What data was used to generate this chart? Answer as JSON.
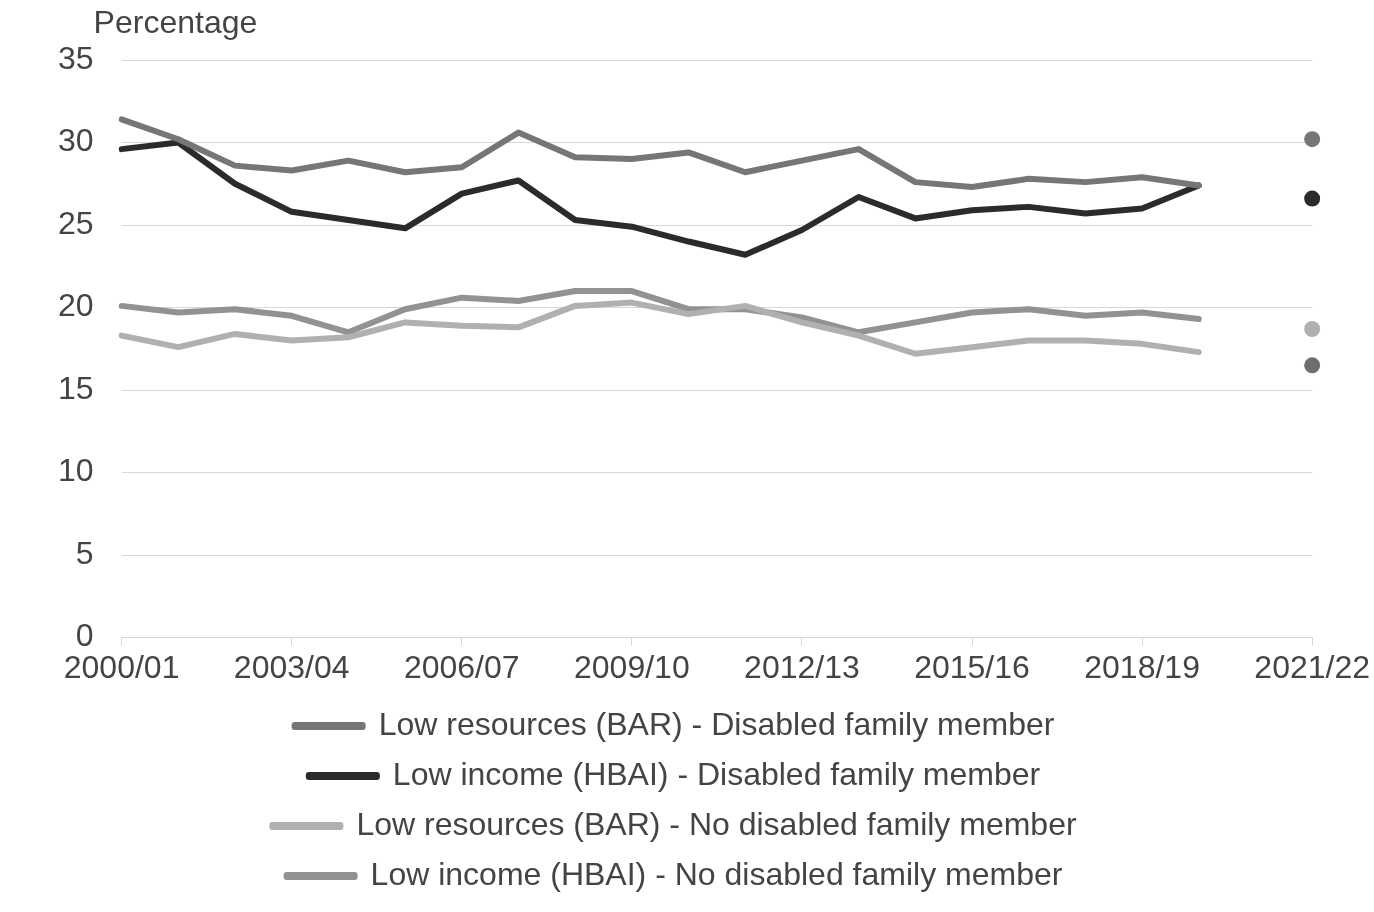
{
  "chart_data": {
    "type": "line",
    "ylabel": "Percentage",
    "categories": [
      "2000/01",
      null,
      null,
      "2003/04",
      null,
      null,
      "2006/07",
      null,
      null,
      "2009/10",
      null,
      null,
      "2012/13",
      null,
      null,
      "2015/16",
      null,
      null,
      "2018/19",
      null,
      null,
      "2021/22"
    ],
    "series": [
      {
        "name": "Low resources (BAR) - Disabled family member",
        "color": "#767676",
        "values": [
          31.4,
          30.2,
          28.6,
          28.3,
          28.9,
          28.2,
          28.5,
          30.6,
          29.1,
          29.0,
          29.4,
          28.2,
          28.9,
          29.6,
          27.6,
          27.3,
          27.8,
          27.6,
          27.9,
          27.4,
          null,
          null
        ]
      },
      {
        "name": "Low income (HBAI) - Disabled family member",
        "color": "#2b2b2b",
        "values": [
          29.6,
          30.0,
          27.5,
          25.8,
          25.3,
          24.8,
          26.9,
          27.7,
          25.3,
          24.9,
          24.0,
          23.2,
          24.7,
          26.7,
          25.4,
          25.9,
          26.1,
          25.7,
          26.0,
          27.4,
          null,
          null
        ]
      },
      {
        "name": "Low resources (BAR) - No disabled family member",
        "color": "#b0b0b0",
        "values": [
          18.3,
          17.6,
          18.4,
          18.0,
          18.2,
          19.1,
          18.9,
          18.8,
          20.1,
          20.3,
          19.6,
          20.1,
          19.1,
          18.3,
          17.2,
          17.6,
          18.0,
          18.0,
          17.8,
          17.3,
          null,
          null
        ]
      },
      {
        "name": "Low income (HBAI) - No disabled family member",
        "color": "#929292",
        "values": [
          20.1,
          19.7,
          19.9,
          19.5,
          18.5,
          19.9,
          20.6,
          20.4,
          21.0,
          21.0,
          19.9,
          19.9,
          19.4,
          18.5,
          19.1,
          19.7,
          19.9,
          19.5,
          19.7,
          19.3,
          null,
          null
        ]
      },
      {
        "type": "scatter",
        "color": "#767676",
        "x": [
          "2021/22"
        ],
        "values": [
          30.2
        ]
      },
      {
        "type": "scatter",
        "color": "#2b2b2b",
        "x": [
          "2021/22"
        ],
        "values": [
          26.6
        ]
      },
      {
        "type": "scatter",
        "color": "#b0b0b0",
        "x": [
          "2021/22"
        ],
        "values": [
          18.7
        ]
      },
      {
        "type": "scatter",
        "color": "#6e6e6e",
        "x": [
          "2021/22"
        ],
        "values": [
          16.5
        ]
      }
    ],
    "ylim": [
      0,
      35
    ],
    "yticks": [
      0,
      5,
      10,
      15,
      20,
      25,
      30,
      35
    ],
    "grid": "y",
    "legend": "bottom",
    "line_style": "solid"
  }
}
